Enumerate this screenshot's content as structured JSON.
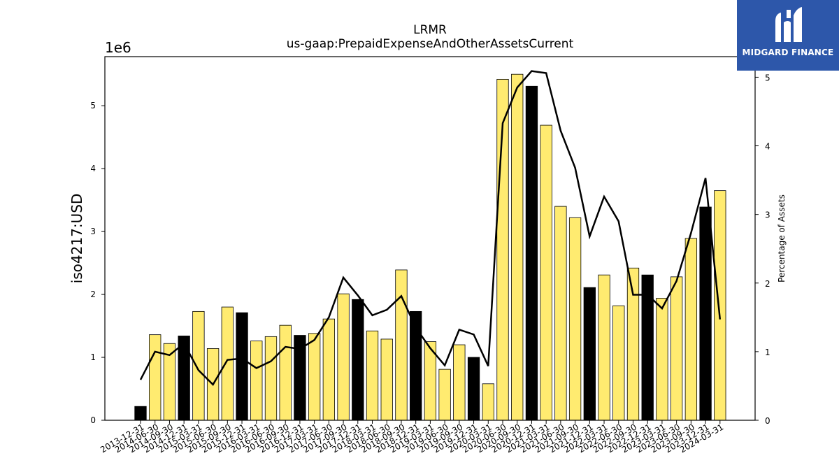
{
  "chart_data": {
    "type": "bar",
    "title": "LRMR",
    "subtitle": "us-gaap:PrepaidExpenseAndOtherAssetsCurrent",
    "ylabel": "iso4217:USD",
    "y_offset_label": "1e6",
    "y2label": "Percentage of Assets",
    "ylim": [
      0,
      5780000
    ],
    "y2lim": [
      0,
      5.3
    ],
    "yticks": [
      0,
      1,
      2,
      3,
      4,
      5
    ],
    "y2ticks": [
      0,
      1,
      2,
      3,
      4,
      5
    ],
    "categories": [
      "2013-12-31",
      "2014-06-30",
      "2014-09-30",
      "2014-12-31",
      "2015-03-31",
      "2015-06-30",
      "2015-09-30",
      "2015-12-31",
      "2016-03-31",
      "2016-06-30",
      "2016-09-30",
      "2016-12-31",
      "2017-03-31",
      "2017-06-30",
      "2017-09-30",
      "2017-12-31",
      "2018-03-31",
      "2018-06-30",
      "2018-09-30",
      "2018-12-31",
      "2019-03-31",
      "2019-06-30",
      "2019-09-30",
      "2019-12-31",
      "2020-03-31",
      "2020-06-30",
      "2020-09-30",
      "2020-12-31",
      "2021-03-31",
      "2021-06-30",
      "2021-09-30",
      "2021-12-31",
      "2022-03-31",
      "2022-06-30",
      "2022-09-30",
      "2022-12-31",
      "2023-03-31",
      "2023-06-30",
      "2023-09-30",
      "2023-12-31",
      "2024-03-31"
    ],
    "series": [
      {
        "values": [
          220000,
          1360000,
          1220000,
          1340000,
          1730000,
          1140000,
          1800000,
          1710000,
          1260000,
          1330000,
          1510000,
          1350000,
          1380000,
          1610000,
          2010000,
          1920000,
          1420000,
          1290000,
          2390000,
          1730000,
          1250000,
          810000,
          1200000,
          1000000,
          580000,
          5420000,
          5500000,
          5310000,
          4690000,
          3400000,
          3220000,
          2110000,
          2310000,
          1820000,
          2420000,
          2310000,
          1940000,
          2280000,
          2890000,
          3390000,
          3650000
        ],
        "year_end": [
          true,
          false,
          false,
          true,
          false,
          false,
          false,
          true,
          false,
          false,
          false,
          true,
          false,
          false,
          false,
          true,
          false,
          false,
          false,
          true,
          false,
          false,
          false,
          true,
          false,
          false,
          false,
          true,
          false,
          false,
          false,
          true,
          false,
          false,
          false,
          true,
          false,
          false,
          false,
          true,
          false
        ]
      },
      {
        "values": [
          0.59,
          1.0,
          0.95,
          1.12,
          0.73,
          0.52,
          0.88,
          0.9,
          0.76,
          0.86,
          1.07,
          1.04,
          1.17,
          1.5,
          2.08,
          1.82,
          1.53,
          1.61,
          1.81,
          1.35,
          1.05,
          0.8,
          1.32,
          1.25,
          0.79,
          4.33,
          4.85,
          5.09,
          5.06,
          4.22,
          3.68,
          2.68,
          3.26,
          2.9,
          1.83,
          1.83,
          1.63,
          2.03,
          2.73,
          3.53,
          1.47
        ]
      }
    ],
    "colors": {
      "bar_regular": "#ffeb70",
      "bar_year_end": "#000000",
      "bar_edge": "#000000",
      "line": "#000000"
    },
    "grid": false
  },
  "logo": {
    "text": "MIDGARD FINANCE"
  }
}
